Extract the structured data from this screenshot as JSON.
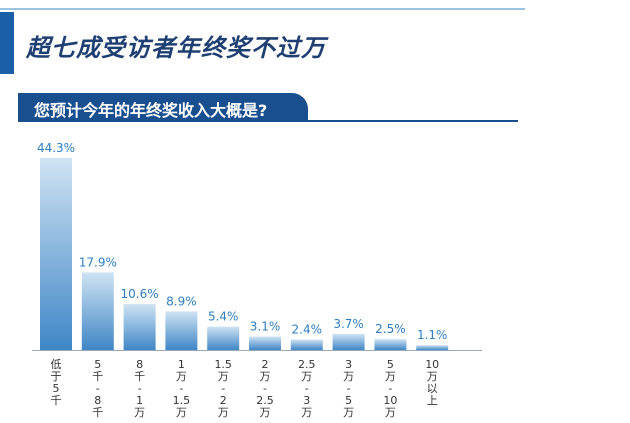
{
  "header": {
    "title": "超七成受访者年终奖不过万",
    "question": "您预计今年的年终奖收入大概是?"
  },
  "colors": {
    "title": "#1f3f73",
    "banner": "#1a4f8f",
    "bar_top": "#cfe3f3",
    "bar_bottom": "#3f86c6",
    "value_label": "#2e7fc0",
    "axis": "#9aaab8"
  },
  "chart_data": {
    "type": "bar",
    "title": "",
    "xlabel": "",
    "ylabel": "",
    "ylim": [
      0,
      44.3
    ],
    "grid": false,
    "categories": [
      "低于5千",
      "5千-8千",
      "8千-1万",
      "1万-1.5万",
      "1.5万-2万",
      "2万-2.5万",
      "2.5万-3万",
      "3万-5万",
      "5万-10万",
      "10万以上"
    ],
    "category_label_lines": [
      [
        "低",
        "于",
        "5",
        "千"
      ],
      [
        "5",
        "千",
        "-",
        "8",
        "千"
      ],
      [
        "8",
        "千",
        "-",
        "1",
        "万"
      ],
      [
        "1",
        "万",
        "-",
        "1.5",
        "万"
      ],
      [
        "1.5",
        "万",
        "-",
        "2",
        "万"
      ],
      [
        "2",
        "万",
        "-",
        "2.5",
        "万"
      ],
      [
        "2.5",
        "万",
        "-",
        "3",
        "万"
      ],
      [
        "3",
        "万",
        "-",
        "5",
        "万"
      ],
      [
        "5",
        "万",
        "-",
        "10",
        "万"
      ],
      [
        "10",
        "万",
        "以",
        "上"
      ]
    ],
    "values": [
      44.3,
      17.9,
      10.6,
      8.9,
      5.4,
      3.1,
      2.4,
      3.7,
      2.5,
      1.1
    ],
    "value_labels": [
      "44.3%",
      "17.9%",
      "10.6%",
      "8.9%",
      "5.4%",
      "3.1%",
      "2.4%",
      "3.7%",
      "2.5%",
      "1.1%"
    ]
  }
}
